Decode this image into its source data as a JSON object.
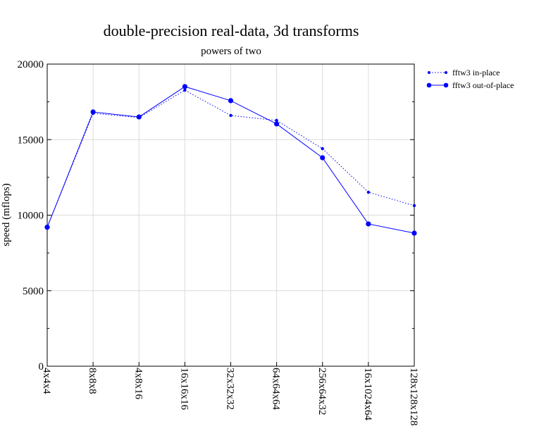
{
  "chart_data": {
    "type": "line",
    "title": "double-precision real-data, 3d transforms",
    "subtitle": "powers of two",
    "xlabel": "",
    "ylabel": "speed (mflops)",
    "categories": [
      "4x4x4",
      "8x8x8",
      "4x8x16",
      "16x16x16",
      "32x32x32",
      "64x64x64",
      "256x64x32",
      "16x1024x64",
      "128x128x128"
    ],
    "ylim": [
      0,
      20000
    ],
    "yticks": [
      0,
      5000,
      10000,
      15000,
      20000
    ],
    "grid": true,
    "legend_position": "right-outside-top",
    "series": [
      {
        "name": "fftw3 in-place",
        "style": "dotted",
        "color": "#0000ff",
        "values": [
          9200,
          16740,
          16460,
          18270,
          16600,
          16270,
          14400,
          11520,
          10630
        ]
      },
      {
        "name": "fftw3 out-of-place",
        "style": "solid",
        "color": "#0000ff",
        "values": [
          9200,
          16830,
          16500,
          18510,
          17580,
          16040,
          13800,
          9420,
          8810
        ]
      }
    ]
  }
}
